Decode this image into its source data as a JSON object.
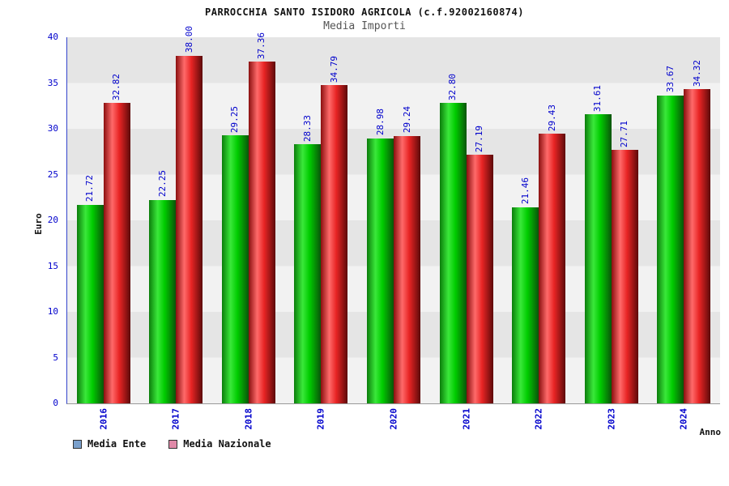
{
  "chart_data": {
    "type": "bar",
    "title": "PARROCCHIA SANTO ISIDORO AGRICOLA (c.f.92002160874)",
    "subtitle": "Media Importi",
    "xlabel": "Anno",
    "ylabel": "Euro",
    "ylim": [
      0,
      40
    ],
    "yticks": [
      0,
      5,
      10,
      15,
      20,
      25,
      30,
      35,
      40
    ],
    "categories": [
      "2016",
      "2017",
      "2018",
      "2019",
      "2020",
      "2021",
      "2022",
      "2023",
      "2024"
    ],
    "series": [
      {
        "name": "Media Ente",
        "bar_color": "#00cc00",
        "legend_color": "#7aa0cc",
        "values": [
          21.72,
          22.25,
          29.25,
          28.33,
          28.98,
          32.8,
          21.46,
          31.61,
          33.67
        ]
      },
      {
        "name": "Media Nazionale",
        "bar_color": "#e82424",
        "legend_color": "#e089a8",
        "values": [
          32.82,
          38.0,
          37.36,
          34.79,
          29.24,
          27.19,
          29.43,
          27.71,
          34.32
        ]
      }
    ],
    "value_label_color": "#0000cc",
    "axis_label_color": "#0000cc",
    "grid": "horizontal-bands",
    "legend_position": "bottom-left"
  }
}
